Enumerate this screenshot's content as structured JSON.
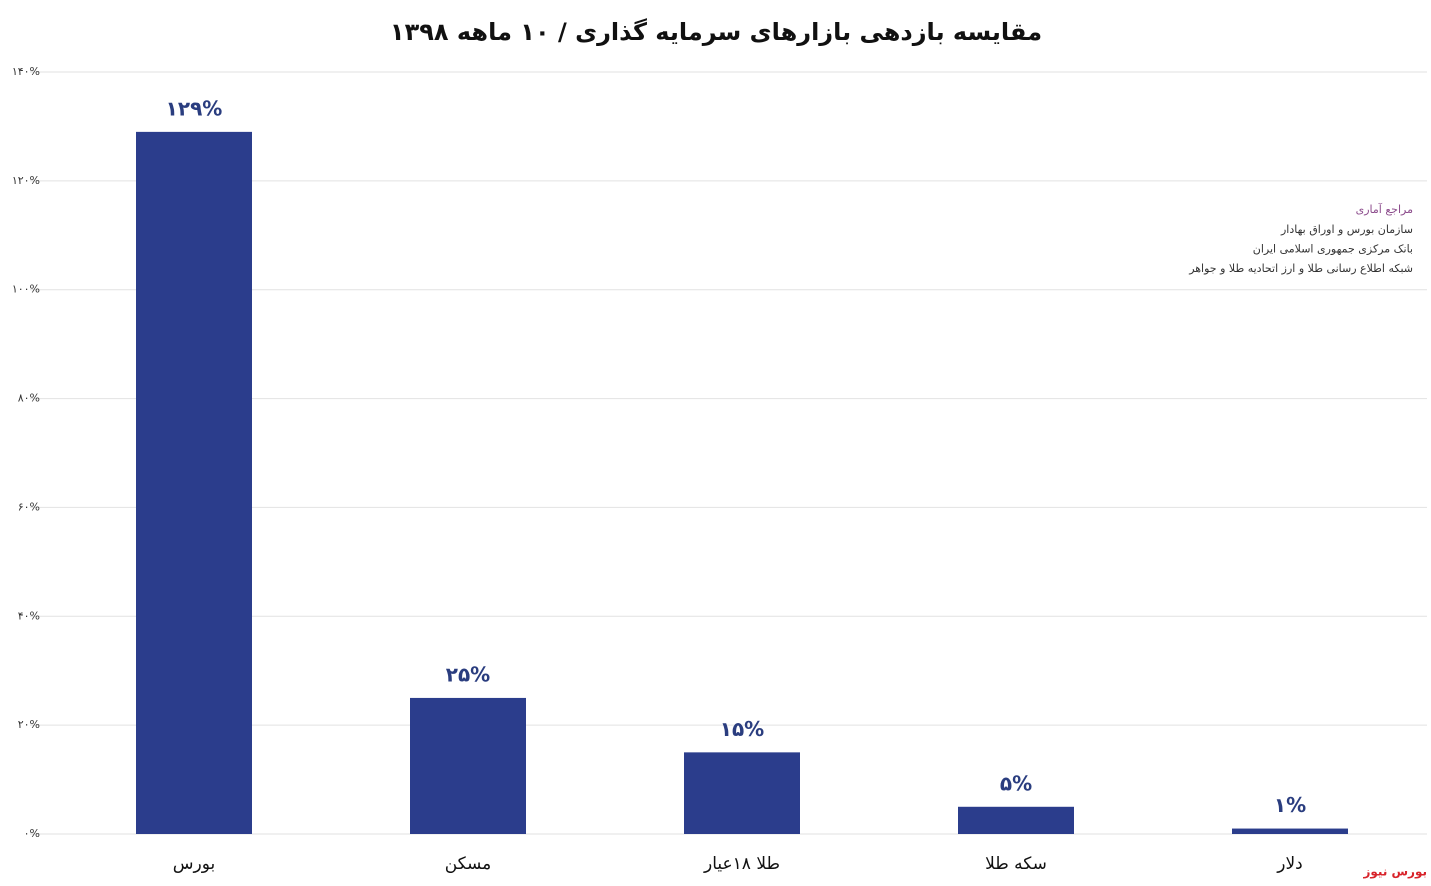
{
  "chart_data": {
    "type": "bar",
    "title": "مقایسه بازدهی بازارهای سرمایه گذاری / ۱۰ ماهه ۱۳۹۸",
    "categories": [
      "بورس",
      "مسکن",
      "طلا ۱۸عیار",
      "سکه طلا",
      "دلار"
    ],
    "values": [
      129,
      25,
      15,
      5,
      1
    ],
    "value_labels": [
      "۱۲۹%",
      "۲۵%",
      "۱۵%",
      "۵%",
      "۱%"
    ],
    "color": "#2b3d8c",
    "ylim": [
      0,
      140
    ],
    "yticks": [
      {
        "value": 0,
        "label": "۰%"
      },
      {
        "value": 20,
        "label": "۲۰%"
      },
      {
        "value": 40,
        "label": "۴۰%"
      },
      {
        "value": 60,
        "label": "۶۰%"
      },
      {
        "value": 80,
        "label": "۸۰%"
      },
      {
        "value": 100,
        "label": "۱۰۰%"
      },
      {
        "value": 120,
        "label": "۱۲۰%"
      },
      {
        "value": 140,
        "label": "۱۴۰%"
      }
    ],
    "grid": true,
    "sources_title": "مراجع آماری",
    "sources": [
      "سازمان بورس و اوراق بهادار",
      "بانک مرکزی جمهوری اسلامی ایران",
      "شبکه اطلاع رسانی طلا و ارز اتحادیه طلا و جواهر"
    ],
    "watermark": "بورس نیوز"
  }
}
